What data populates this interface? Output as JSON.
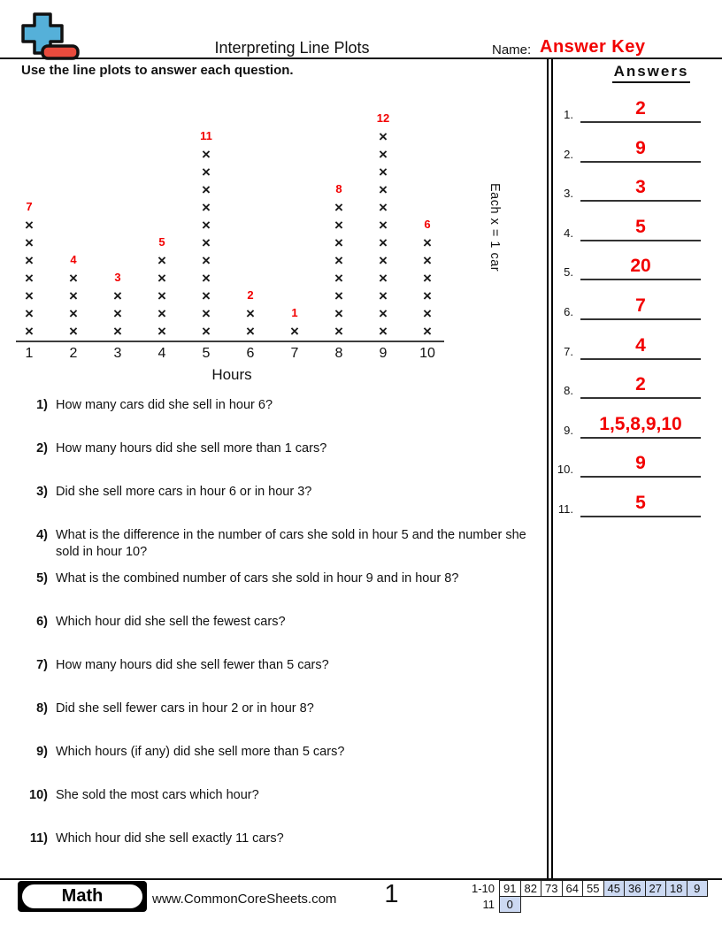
{
  "header": {
    "title": "Interpreting Line Plots",
    "name_label": "Name:",
    "name_value": "Answer Key",
    "accent_red": "#f20000",
    "logo": {
      "plus_color": "#55b0d9",
      "minus_color": "#e94b3d"
    }
  },
  "instruction": "Use the line plots to answer each question.",
  "chart_data": {
    "type": "line_plot",
    "categories": [
      "1",
      "2",
      "3",
      "4",
      "5",
      "6",
      "7",
      "8",
      "9",
      "10"
    ],
    "values": [
      7,
      4,
      3,
      5,
      11,
      2,
      1,
      8,
      12,
      6
    ],
    "marker": "×",
    "xlabel": "Hours",
    "key_label": "Each x = 1 car",
    "count_label_color": "#f20000",
    "ylim": [
      0,
      12
    ],
    "grid": false
  },
  "questions": [
    {
      "num": "1)",
      "text": "How many cars did she sell in hour 6?"
    },
    {
      "num": "2)",
      "text": "How many hours did she sell more than 1 cars?"
    },
    {
      "num": "3)",
      "text": "Did she sell more cars in hour 6 or in hour 3?"
    },
    {
      "num": "4)",
      "text": "What is the difference in the number of cars she sold in hour 5 and the number she sold in hour 10?"
    },
    {
      "num": "5)",
      "text": "What is the combined number of cars she sold in hour 9 and in hour 8?"
    },
    {
      "num": "6)",
      "text": "Which hour did she sell the fewest cars?"
    },
    {
      "num": "7)",
      "text": "How many hours did she sell fewer than 5 cars?"
    },
    {
      "num": "8)",
      "text": "Did she sell fewer cars in hour 2 or in hour 8?"
    },
    {
      "num": "9)",
      "text": "Which hours (if any) did she sell more than 5 cars?"
    },
    {
      "num": "10)",
      "text": "She sold the most cars which hour?"
    },
    {
      "num": "11)",
      "text": "Which hour did she sell exactly 11 cars?"
    }
  ],
  "answers_panel": {
    "heading": "Answers",
    "items": [
      {
        "num": "1.",
        "value": "2"
      },
      {
        "num": "2.",
        "value": "9"
      },
      {
        "num": "3.",
        "value": "3"
      },
      {
        "num": "4.",
        "value": "5"
      },
      {
        "num": "5.",
        "value": "20"
      },
      {
        "num": "6.",
        "value": "7"
      },
      {
        "num": "7.",
        "value": "4"
      },
      {
        "num": "8.",
        "value": "2"
      },
      {
        "num": "9.",
        "value": "1,5,8,9,10"
      },
      {
        "num": "10.",
        "value": "9"
      },
      {
        "num": "11.",
        "value": "5"
      }
    ]
  },
  "footer": {
    "brand": "Math",
    "site": "www.CommonCoreSheets.com",
    "page_number": "1",
    "score_table": {
      "highlight_color": "#ccd9f2",
      "row1_label": "1-10",
      "row1_cells": [
        {
          "v": "91",
          "hl": false
        },
        {
          "v": "82",
          "hl": false
        },
        {
          "v": "73",
          "hl": false
        },
        {
          "v": "64",
          "hl": false
        },
        {
          "v": "55",
          "hl": false
        },
        {
          "v": "45",
          "hl": true
        },
        {
          "v": "36",
          "hl": true
        },
        {
          "v": "27",
          "hl": true
        },
        {
          "v": "18",
          "hl": true
        },
        {
          "v": "9",
          "hl": true
        }
      ],
      "row2_label": "11",
      "row2_cells": [
        {
          "v": "0",
          "hl": true
        }
      ]
    }
  }
}
